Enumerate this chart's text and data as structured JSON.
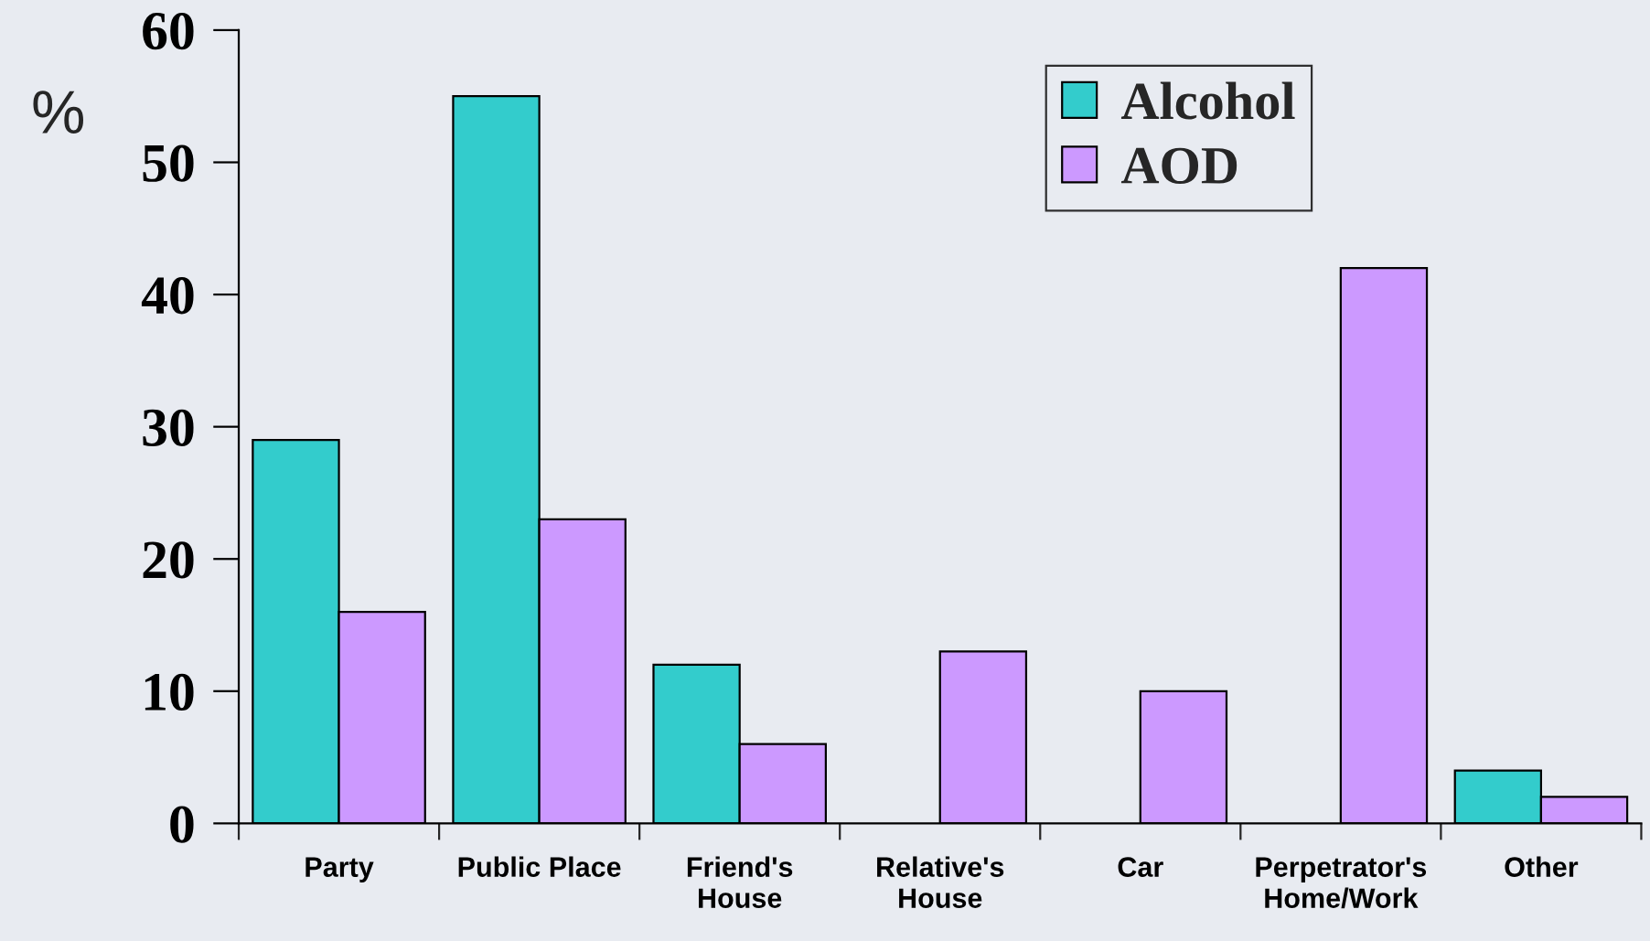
{
  "chart_data": {
    "type": "bar",
    "ylabel": "%",
    "categories": [
      "Party",
      "Public Place",
      "Friend's House",
      "Relative's House",
      "Car",
      "Perpetrator's Home/Work",
      "Other"
    ],
    "series": [
      {
        "name": "Alcohol",
        "color": "#33cccc",
        "values": [
          29,
          55,
          12,
          null,
          null,
          null,
          4
        ]
      },
      {
        "name": "AOD",
        "color": "#cc99ff",
        "values": [
          16,
          23,
          6,
          13,
          10,
          42,
          2
        ]
      }
    ],
    "ylim": [
      0,
      60
    ],
    "yticks": [
      0,
      10,
      20,
      30,
      40,
      50,
      60
    ],
    "legend": "top right"
  }
}
